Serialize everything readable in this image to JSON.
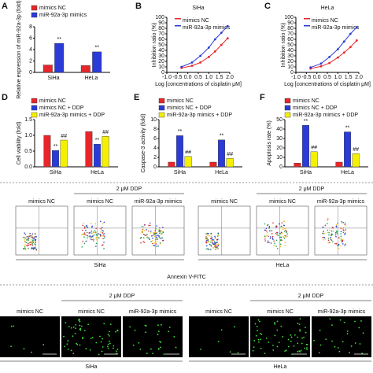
{
  "chart_data": [
    {
      "type": "bar",
      "panel": "A",
      "ylabel": "Relative expression of miR-92a-3p (fold)",
      "categories": [
        "SiHa",
        "HeLa"
      ],
      "ylim": [
        0,
        8
      ],
      "yticks": [
        0,
        2,
        4,
        6,
        8
      ],
      "series": [
        {
          "name": "mimics NC",
          "color": "#e8262a",
          "values": [
            1.3,
            1.2
          ],
          "annotations": [
            null,
            null
          ]
        },
        {
          "name": "miR-92a-3p mimics",
          "color": "#2a3bd8",
          "values": [
            5.1,
            3.6
          ],
          "annotations": [
            "**",
            "**"
          ]
        }
      ]
    },
    {
      "type": "line",
      "panel": "B",
      "title": "SiHa",
      "xlabel": "Log [concentrations of cisplatin μM]",
      "ylabel": "Inhibition ratio (%)",
      "xlim": [
        -1,
        2
      ],
      "ylim": [
        0,
        100
      ],
      "xticks": [
        {
          "value": -1,
          "label": "-1.0"
        },
        {
          "value": -0.5,
          "label": "-0.5"
        },
        {
          "value": 0,
          "label": "0.0"
        },
        {
          "value": 0.5,
          "label": "0.5"
        },
        {
          "value": 1,
          "label": "1.0"
        },
        {
          "value": 1.5,
          "label": "1.5"
        },
        {
          "value": 2,
          "label": "2.0"
        }
      ],
      "yticks": [
        0,
        10,
        20,
        30,
        40,
        50,
        60,
        70,
        80,
        90,
        100
      ],
      "x": [
        -0.3,
        0.2,
        0.6,
        1.0,
        1.3,
        1.6,
        1.9
      ],
      "series": [
        {
          "name": "mimics NC",
          "color": "#e8262a",
          "values": [
            8,
            12,
            18,
            28,
            38,
            50,
            62
          ]
        },
        {
          "name": "miR-92a-3p mimics",
          "color": "#2a3bd8",
          "values": [
            10,
            18,
            30,
            45,
            60,
            72,
            84
          ]
        }
      ]
    },
    {
      "type": "line",
      "panel": "C",
      "title": "HeLa",
      "xlabel": "Log [concentrations of cisplatin μM]",
      "ylabel": "Inhibition ratio (%)",
      "xlim": [
        -1,
        2
      ],
      "ylim": [
        0,
        100
      ],
      "xticks": [
        {
          "value": -1,
          "label": "-1.0"
        },
        {
          "value": -0.5,
          "label": "-0.5"
        },
        {
          "value": 0,
          "label": "0.0"
        },
        {
          "value": 0.5,
          "label": "0.5"
        },
        {
          "value": 1,
          "label": "1.0"
        },
        {
          "value": 1.5,
          "label": "1.5"
        },
        {
          "value": 2,
          "label": "2.0"
        }
      ],
      "yticks": [
        0,
        10,
        20,
        30,
        40,
        50,
        60,
        70,
        80,
        90,
        100
      ],
      "x": [
        -0.3,
        0.2,
        0.6,
        1.0,
        1.3,
        1.6,
        1.9
      ],
      "series": [
        {
          "name": "mimics NC",
          "color": "#e8262a",
          "values": [
            7,
            11,
            17,
            27,
            36,
            46,
            58
          ]
        },
        {
          "name": "miR-92a-3p mimics",
          "color": "#2a3bd8",
          "values": [
            9,
            16,
            28,
            42,
            56,
            70,
            82
          ]
        }
      ]
    },
    {
      "type": "bar",
      "panel": "D",
      "ylabel": "Cell viability (fold)",
      "categories": [
        "SiHa",
        "HeLa"
      ],
      "ylim": [
        0,
        1.5
      ],
      "yticks": [
        {
          "value": 0,
          "label": "0.0"
        },
        {
          "value": 0.5,
          "label": "0.5"
        },
        {
          "value": 1,
          "label": "1.0"
        },
        {
          "value": 1.5,
          "label": "1.5"
        }
      ],
      "series": [
        {
          "name": "mimics NC",
          "color": "#e8262a",
          "values": [
            1.0,
            1.12
          ],
          "annotations": [
            null,
            null
          ]
        },
        {
          "name": "mimics NC + DDP",
          "color": "#2a3bd8",
          "values": [
            0.52,
            0.72
          ],
          "annotations": [
            "**",
            "**"
          ]
        },
        {
          "name": "miR-92a-3p mimics + DDP",
          "color": "#f4f000",
          "values": [
            0.85,
            0.97
          ],
          "annotations": [
            "##",
            "##"
          ]
        }
      ]
    },
    {
      "type": "bar",
      "panel": "E",
      "ylabel": "Caspase-3 activity (fold)",
      "categories": [
        "SiHa",
        "HeLa"
      ],
      "ylim": [
        0,
        10
      ],
      "yticks": [
        0,
        2,
        4,
        6,
        8,
        10
      ],
      "series": [
        {
          "name": "mimics NC",
          "color": "#e8262a",
          "values": [
            1.0,
            1.0
          ],
          "annotations": [
            null,
            null
          ]
        },
        {
          "name": "mimics NC + DDP",
          "color": "#2a3bd8",
          "values": [
            6.6,
            5.7
          ],
          "annotations": [
            "**",
            "**"
          ]
        },
        {
          "name": "miR-92a-3p mimics + DDP",
          "color": "#f4f000",
          "values": [
            2.2,
            1.8
          ],
          "annotations": [
            "##",
            "##"
          ]
        }
      ]
    },
    {
      "type": "bar",
      "panel": "F",
      "ylabel": "Apoptosis rate (%)",
      "categories": [
        "SiHa",
        "HeLa"
      ],
      "ylim": [
        0,
        50
      ],
      "yticks": [
        0,
        10,
        20,
        30,
        40,
        50
      ],
      "series": [
        {
          "name": "mimics NC",
          "color": "#e8262a",
          "values": [
            4,
            5
          ],
          "annotations": [
            null,
            null
          ]
        },
        {
          "name": "mimics NC + DDP",
          "color": "#2a3bd8",
          "values": [
            44,
            37
          ],
          "annotations": [
            "**",
            "**"
          ]
        },
        {
          "name": "miR-92a-3p mimics + DDP",
          "color": "#f4f000",
          "values": [
            16,
            14
          ],
          "annotations": [
            "##",
            "##"
          ]
        }
      ]
    }
  ],
  "flow": {
    "x_axis": "Annexin V-FITC",
    "groups": [
      {
        "cell": "SiHa",
        "ddp": "2 μM DDP",
        "panels": [
          "mimics NC",
          "mimics NC",
          "miR-92a-3p mimics"
        ]
      },
      {
        "cell": "HeLa",
        "ddp": "2 μM DDP",
        "panels": [
          "mimics NC",
          "mimics NC",
          "miR-92a-3p mimics"
        ]
      }
    ]
  },
  "micro": {
    "groups": [
      {
        "cell": "SiHa",
        "ddp": "2 μM DDP",
        "panels": [
          "mimics NC",
          "mimics NC",
          "miR-92a-3p mimics"
        ]
      },
      {
        "cell": "HeLa",
        "ddp": "2 μM DDP",
        "panels": [
          "mimics NC",
          "mimics NC",
          "miR-92a-3p mimics"
        ]
      }
    ]
  }
}
